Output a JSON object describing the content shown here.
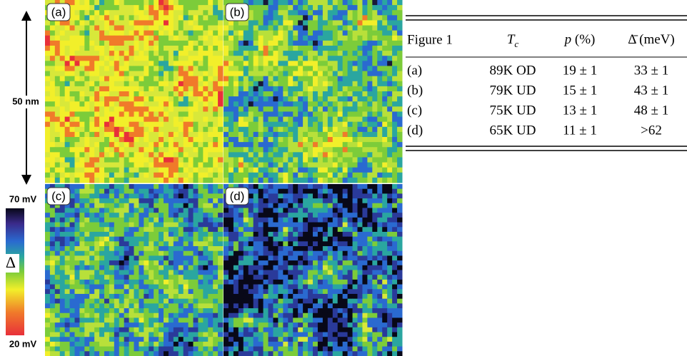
{
  "figure": {
    "scale_label": "50 nm",
    "colorbar": {
      "top_label": "70 mV",
      "bottom_label": "20 mV",
      "symbol": "Δ"
    },
    "panels": [
      "(a)",
      "(b)",
      "(c)",
      "(d)"
    ]
  },
  "table": {
    "header": {
      "figure": "Figure 1",
      "tc": {
        "symbol": "T",
        "subscript": "c"
      },
      "p": {
        "symbol": "p",
        "unit": " (%)"
      },
      "gap": {
        "symbol": "Δ̄",
        "unit": " (meV)"
      }
    },
    "rows": [
      [
        "(a)",
        "89K OD",
        "19 ± 1",
        "33 ± 1"
      ],
      [
        "(b)",
        "79K UD",
        "15 ± 1",
        "43 ± 1"
      ],
      [
        "(c)",
        "75K UD",
        "13 ± 1",
        "48 ± 1"
      ],
      [
        "(d)",
        "65K UD",
        "11 ± 1",
        ">62"
      ]
    ]
  }
}
